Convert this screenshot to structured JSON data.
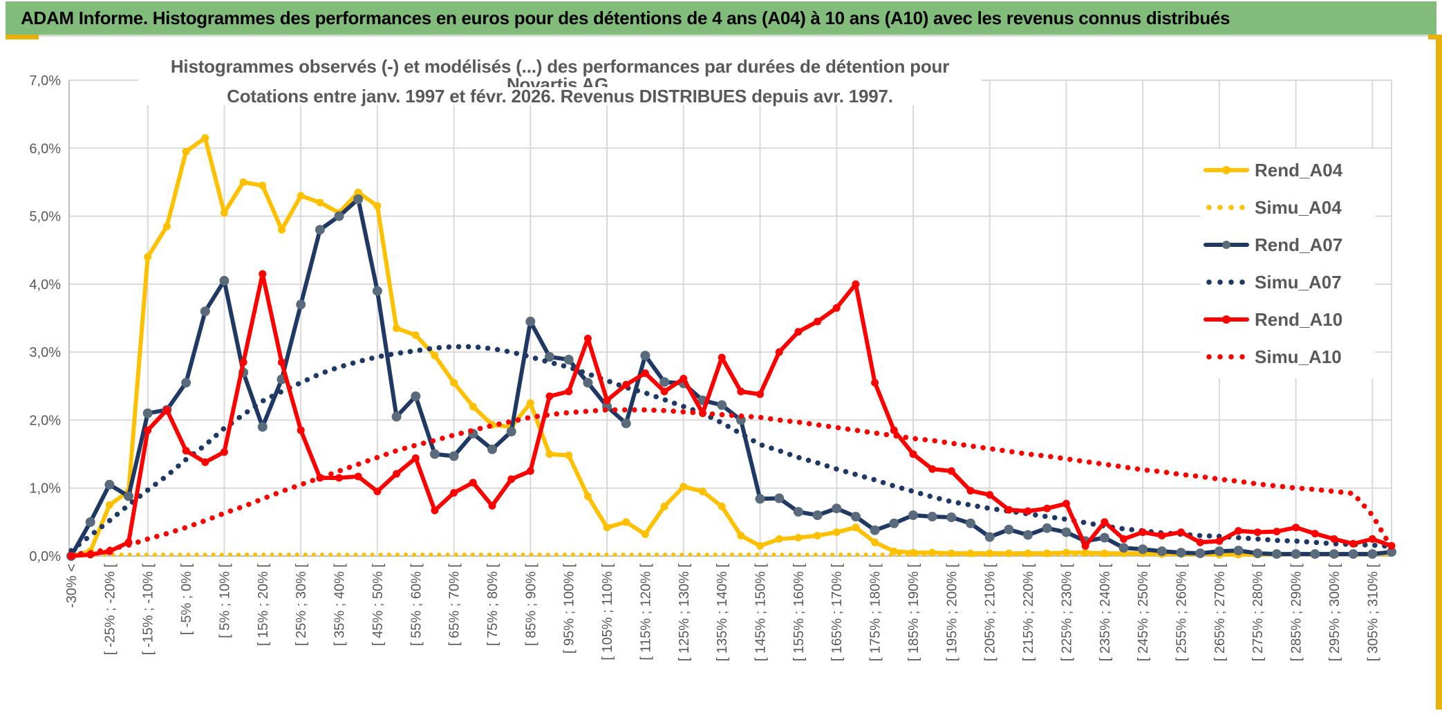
{
  "header": {
    "title": "ADAM Informe. Histogrammes des performances en euros pour des détentions de 4 ans (A04) à 10 ans (A10) avec les revenus connus distribués"
  },
  "chart_data": {
    "type": "line",
    "title_line1": "Histogrammes observés (-) et modélisés (...) des performances par durées de détention pour Novartis AG.",
    "title_line2": "Cotations entre janv. 1997 et févr. 2026. Revenus DISTRIBUES depuis avr. 1997.",
    "ylim": [
      0,
      7
    ],
    "grid": "on",
    "legend_position": "right-inside",
    "y_tick_labels": [
      "0,0%",
      "1,0%",
      "2,0%",
      "3,0%",
      "4,0%",
      "5,0%",
      "6,0%",
      "7,0%"
    ],
    "x_tick_labels": [
      "-30% <",
      "[ -25% ; -20% [",
      "[ -15% ; -10% [",
      "[ -5% ; 0% [",
      "[ 5% ; 10% [",
      "[ 15% ; 20% [",
      "[ 25% ; 30% [",
      "[ 35% ; 40% [",
      "[ 45% ; 50% [",
      "[ 55% ; 60% [",
      "[ 65% ; 70% [",
      "[ 75% ; 80% [",
      "[ 85% ; 90% [",
      "[ 95% ; 100% [",
      "[ 105% ; 110% [",
      "[ 115% ; 120% [",
      "[ 125% ; 130% [",
      "[ 135% ; 140% [",
      "[ 145% ; 150% [",
      "[ 155% ; 160% [",
      "[ 165% ; 170% [",
      "[ 175% ; 180% [",
      "[ 185% ; 190% [",
      "[ 195% ; 200% [",
      "[ 205% ; 210% [",
      "[ 215% ; 220% [",
      "[ 225% ; 230% [",
      "[ 235% ; 240% [",
      "[ 245% ; 250% [",
      "[ 255% ; 260% [",
      "[ 265% ; 270% [",
      "[ 275% ; 280% [",
      "[ 285% ; 290% [",
      "[ 295% ; 300% [",
      "[ 305% ; 310% ["
    ],
    "bucket_width_pct": 5,
    "n_points": 70,
    "colors": {
      "gold": "#ffc000",
      "navy": "#1f3864",
      "red": "#ff0000",
      "navy_marker": "#5a6b7c",
      "grid": "#d9d9d9",
      "axis": "#bfbfbf",
      "text": "#595959"
    },
    "series": [
      {
        "name": "Rend_A04",
        "color": "#ffc000",
        "style": "solid",
        "marker": true,
        "values": [
          0.0,
          0.07,
          0.75,
          0.95,
          4.4,
          4.85,
          5.95,
          6.15,
          5.05,
          5.5,
          5.45,
          4.8,
          5.3,
          5.2,
          5.05,
          5.35,
          5.15,
          3.35,
          3.25,
          2.95,
          2.55,
          2.2,
          1.93,
          1.9,
          2.25,
          1.5,
          1.48,
          0.88,
          0.42,
          0.5,
          0.32,
          0.73,
          1.02,
          0.95,
          0.73,
          0.3,
          0.15,
          0.25,
          0.27,
          0.3,
          0.35,
          0.42,
          0.2,
          0.07,
          0.05,
          0.05,
          0.04,
          0.04,
          0.04,
          0.04,
          0.04,
          0.04,
          0.05,
          0.05,
          0.04,
          0.04,
          0.04,
          0.03,
          0.03,
          0.03,
          0.02,
          0.02,
          0.02,
          0.03,
          0.03,
          0.03,
          0.03,
          0.03,
          0.03,
          0.05
        ]
      },
      {
        "name": "Simu_A04",
        "color": "#ffc000",
        "style": "dotted",
        "marker": false,
        "values": [
          0.02,
          0.02,
          0.02,
          0.02,
          0.02,
          0.02,
          0.02,
          0.02,
          0.02,
          0.02,
          0.02,
          0.02,
          0.02,
          0.02,
          0.02,
          0.02,
          0.02,
          0.02,
          0.02,
          0.02,
          0.02,
          0.02,
          0.02,
          0.02,
          0.02,
          0.02,
          0.02,
          0.02,
          0.02,
          0.02,
          0.02,
          0.02,
          0.02,
          0.02,
          0.02,
          0.02,
          0.02,
          0.02,
          0.02,
          0.02,
          0.02,
          0.02,
          0.02,
          0.02,
          0.02,
          0.02,
          0.02,
          0.02,
          0.02,
          0.02,
          0.02,
          0.02,
          0.02,
          0.02,
          0.02,
          0.02,
          0.02,
          0.02,
          0.02,
          0.02,
          0.02,
          0.02,
          0.02,
          0.02,
          0.02,
          0.02,
          0.02,
          0.02,
          0.02,
          0.02
        ]
      },
      {
        "name": "Rend_A07",
        "color": "#1f3864",
        "style": "solid",
        "marker": true,
        "values": [
          0.0,
          0.5,
          1.05,
          0.88,
          2.1,
          2.15,
          2.55,
          3.6,
          4.05,
          2.7,
          1.9,
          2.6,
          3.7,
          4.8,
          5.0,
          5.25,
          3.9,
          2.05,
          2.35,
          1.5,
          1.47,
          1.8,
          1.57,
          1.83,
          3.45,
          2.93,
          2.89,
          2.55,
          2.2,
          1.95,
          2.95,
          2.56,
          2.54,
          2.29,
          2.22,
          2.0,
          0.84,
          0.85,
          0.65,
          0.6,
          0.7,
          0.58,
          0.38,
          0.48,
          0.6,
          0.58,
          0.57,
          0.48,
          0.28,
          0.39,
          0.31,
          0.41,
          0.35,
          0.22,
          0.27,
          0.12,
          0.1,
          0.07,
          0.05,
          0.04,
          0.07,
          0.08,
          0.04,
          0.03,
          0.03,
          0.03,
          0.03,
          0.03,
          0.03,
          0.06
        ]
      },
      {
        "name": "Simu_A07",
        "color": "#1f3864",
        "style": "dotted",
        "marker": false,
        "values": [
          0.08,
          0.3,
          0.52,
          0.75,
          0.97,
          1.18,
          1.42,
          1.63,
          1.88,
          2.08,
          2.28,
          2.42,
          2.55,
          2.68,
          2.78,
          2.86,
          2.93,
          2.98,
          3.02,
          3.06,
          3.08,
          3.08,
          3.05,
          3.0,
          2.93,
          2.85,
          2.78,
          2.68,
          2.58,
          2.48,
          2.4,
          2.3,
          2.2,
          2.1,
          1.96,
          1.8,
          1.64,
          1.55,
          1.45,
          1.37,
          1.28,
          1.2,
          1.12,
          1.03,
          0.95,
          0.87,
          0.8,
          0.75,
          0.7,
          0.66,
          0.62,
          0.58,
          0.54,
          0.49,
          0.44,
          0.4,
          0.37,
          0.34,
          0.32,
          0.3,
          0.29,
          0.27,
          0.25,
          0.23,
          0.22,
          0.2,
          0.18,
          0.17,
          0.16,
          0.14
        ]
      },
      {
        "name": "Rend_A10",
        "color": "#ff0000",
        "style": "solid",
        "marker": true,
        "values": [
          0.0,
          0.02,
          0.07,
          0.2,
          1.85,
          2.15,
          1.55,
          1.38,
          1.53,
          2.85,
          4.15,
          2.85,
          1.85,
          1.15,
          1.15,
          1.17,
          0.95,
          1.21,
          1.44,
          0.67,
          0.93,
          1.08,
          0.74,
          1.13,
          1.25,
          2.35,
          2.42,
          3.2,
          2.29,
          2.52,
          2.69,
          2.42,
          2.61,
          2.1,
          2.92,
          2.42,
          2.38,
          3.0,
          3.3,
          3.45,
          3.65,
          4.0,
          2.55,
          1.85,
          1.5,
          1.28,
          1.25,
          0.96,
          0.9,
          0.68,
          0.66,
          0.7,
          0.77,
          0.15,
          0.5,
          0.25,
          0.35,
          0.3,
          0.35,
          0.2,
          0.22,
          0.37,
          0.35,
          0.36,
          0.42,
          0.33,
          0.25,
          0.18,
          0.25,
          0.15
        ]
      },
      {
        "name": "Simu_A10",
        "color": "#ff0000",
        "style": "dotted",
        "marker": false,
        "values": [
          0.02,
          0.05,
          0.1,
          0.16,
          0.25,
          0.33,
          0.42,
          0.52,
          0.63,
          0.73,
          0.84,
          0.95,
          1.05,
          1.15,
          1.25,
          1.35,
          1.45,
          1.55,
          1.63,
          1.7,
          1.78,
          1.85,
          1.92,
          1.98,
          2.04,
          2.08,
          2.11,
          2.13,
          2.15,
          2.15,
          2.15,
          2.14,
          2.12,
          2.1,
          2.08,
          2.06,
          2.04,
          2.0,
          1.97,
          1.93,
          1.89,
          1.85,
          1.81,
          1.77,
          1.73,
          1.7,
          1.66,
          1.62,
          1.58,
          1.54,
          1.5,
          1.47,
          1.43,
          1.39,
          1.35,
          1.31,
          1.27,
          1.24,
          1.2,
          1.17,
          1.13,
          1.1,
          1.06,
          1.03,
          1.0,
          0.98,
          0.95,
          0.92,
          0.6,
          0.12
        ]
      }
    ]
  }
}
